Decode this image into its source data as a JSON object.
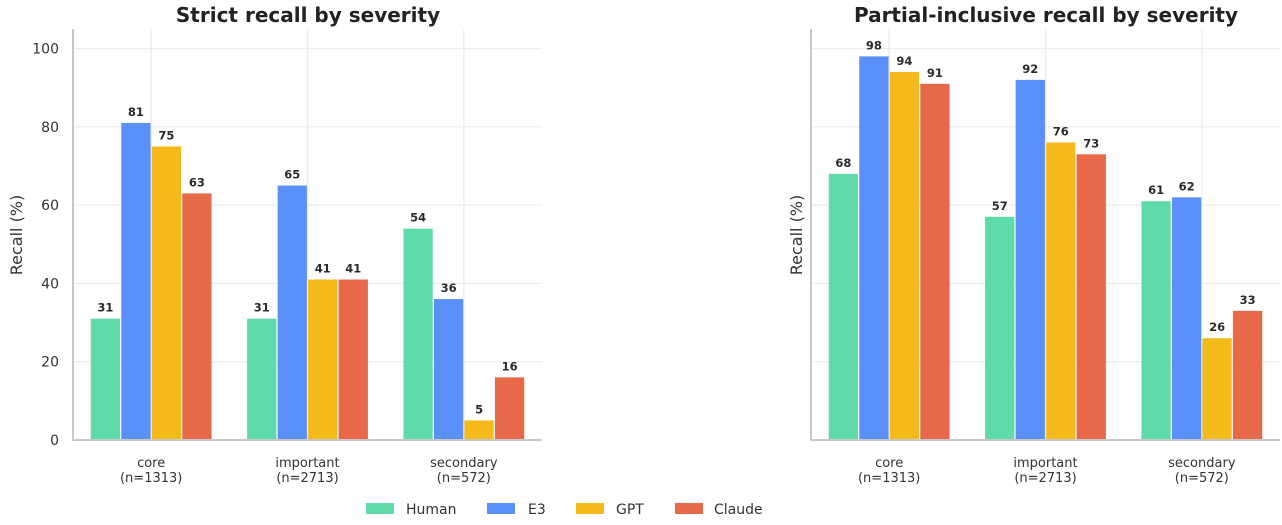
{
  "colors": {
    "Human": "#5fdba9",
    "E3": "#5b8ffa",
    "GPT": "#f4ba1c",
    "Claude": "#e8694a",
    "axis": "#c8c8c8",
    "grid": "#ececec"
  },
  "legend": [
    "Human",
    "E3",
    "GPT",
    "Claude"
  ],
  "chart_data": [
    {
      "type": "bar",
      "title": "Strict recall by severity",
      "ylabel": "Recall (%)",
      "xlabel": "",
      "ylim": [
        0,
        105
      ],
      "yticks": [
        0,
        20,
        40,
        60,
        80,
        100
      ],
      "show_ytick_labels": true,
      "grid": true,
      "categories": [
        "core\n(n=1313)",
        "important\n(n=2713)",
        "secondary\n(n=572)"
      ],
      "series": [
        {
          "name": "Human",
          "values": [
            31,
            31,
            54
          ]
        },
        {
          "name": "E3",
          "values": [
            81,
            65,
            36
          ]
        },
        {
          "name": "GPT",
          "values": [
            75,
            41,
            5
          ]
        },
        {
          "name": "Claude",
          "values": [
            63,
            41,
            16
          ]
        }
      ],
      "legend_position": "bottom-center"
    },
    {
      "type": "bar",
      "title": "Partial-inclusive recall by severity",
      "ylabel": "Recall (%)",
      "xlabel": "",
      "ylim": [
        0,
        105
      ],
      "yticks": [
        0,
        20,
        40,
        60,
        80,
        100
      ],
      "show_ytick_labels": false,
      "grid": true,
      "categories": [
        "core\n(n=1313)",
        "important\n(n=2713)",
        "secondary\n(n=572)"
      ],
      "series": [
        {
          "name": "Human",
          "values": [
            68,
            57,
            61
          ]
        },
        {
          "name": "E3",
          "values": [
            98,
            92,
            62
          ]
        },
        {
          "name": "GPT",
          "values": [
            94,
            76,
            26
          ]
        },
        {
          "name": "Claude",
          "values": [
            91,
            73,
            33
          ]
        }
      ],
      "legend_position": "bottom-center"
    }
  ]
}
